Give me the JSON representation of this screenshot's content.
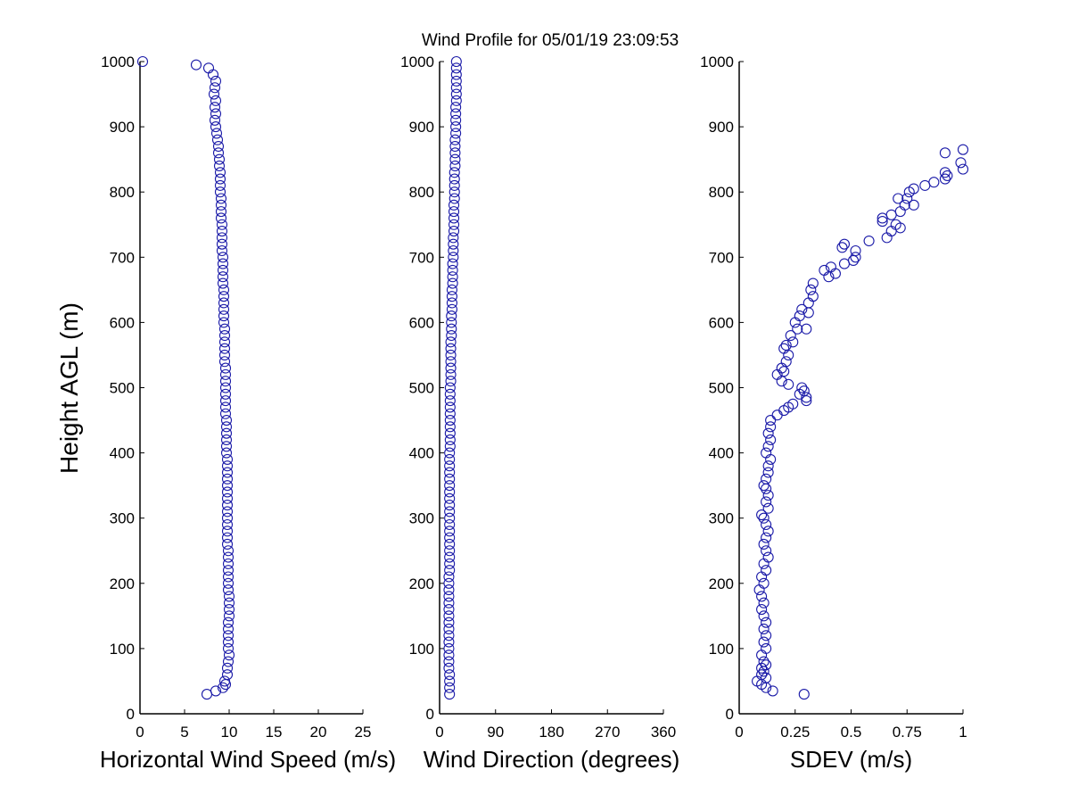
{
  "title": "Wind Profile for  05/01/19 23:09:53",
  "chart_data": [
    {
      "type": "scatter",
      "xlabel": "Horizontal Wind Speed (m/s)",
      "ylabel": "Height AGL (m)",
      "xlim": [
        0,
        25
      ],
      "ylim": [
        0,
        1000
      ],
      "xticks": [
        "0",
        "5",
        "10",
        "15",
        "20",
        "25"
      ],
      "yticks": [
        "0",
        "100",
        "200",
        "300",
        "400",
        "500",
        "600",
        "700",
        "800",
        "900",
        "1000"
      ],
      "color": "#1a1aa8",
      "points": [
        [
          7.5,
          30
        ],
        [
          8.5,
          35
        ],
        [
          9.3,
          40
        ],
        [
          9.6,
          45
        ],
        [
          9.5,
          50
        ],
        [
          9.8,
          60
        ],
        [
          9.8,
          70
        ],
        [
          9.9,
          80
        ],
        [
          10.0,
          90
        ],
        [
          9.9,
          100
        ],
        [
          9.9,
          110
        ],
        [
          9.9,
          120
        ],
        [
          9.9,
          130
        ],
        [
          9.9,
          140
        ],
        [
          10.0,
          150
        ],
        [
          10.0,
          160
        ],
        [
          10.0,
          170
        ],
        [
          10.0,
          180
        ],
        [
          9.9,
          190
        ],
        [
          9.9,
          200
        ],
        [
          9.9,
          210
        ],
        [
          9.9,
          220
        ],
        [
          9.9,
          230
        ],
        [
          9.9,
          240
        ],
        [
          9.9,
          250
        ],
        [
          9.8,
          260
        ],
        [
          9.8,
          270
        ],
        [
          9.8,
          280
        ],
        [
          9.8,
          290
        ],
        [
          9.8,
          300
        ],
        [
          9.8,
          310
        ],
        [
          9.8,
          320
        ],
        [
          9.8,
          330
        ],
        [
          9.8,
          340
        ],
        [
          9.8,
          350
        ],
        [
          9.8,
          360
        ],
        [
          9.8,
          370
        ],
        [
          9.8,
          380
        ],
        [
          9.8,
          390
        ],
        [
          9.7,
          400
        ],
        [
          9.7,
          410
        ],
        [
          9.7,
          420
        ],
        [
          9.7,
          430
        ],
        [
          9.7,
          440
        ],
        [
          9.7,
          450
        ],
        [
          9.6,
          460
        ],
        [
          9.6,
          470
        ],
        [
          9.6,
          480
        ],
        [
          9.6,
          490
        ],
        [
          9.6,
          500
        ],
        [
          9.6,
          510
        ],
        [
          9.6,
          520
        ],
        [
          9.6,
          530
        ],
        [
          9.5,
          540
        ],
        [
          9.5,
          550
        ],
        [
          9.5,
          560
        ],
        [
          9.5,
          570
        ],
        [
          9.5,
          580
        ],
        [
          9.5,
          590
        ],
        [
          9.4,
          600
        ],
        [
          9.4,
          610
        ],
        [
          9.4,
          620
        ],
        [
          9.4,
          630
        ],
        [
          9.4,
          640
        ],
        [
          9.4,
          650
        ],
        [
          9.3,
          660
        ],
        [
          9.3,
          670
        ],
        [
          9.3,
          680
        ],
        [
          9.3,
          690
        ],
        [
          9.3,
          700
        ],
        [
          9.2,
          710
        ],
        [
          9.2,
          720
        ],
        [
          9.2,
          730
        ],
        [
          9.2,
          740
        ],
        [
          9.2,
          750
        ],
        [
          9.1,
          760
        ],
        [
          9.1,
          770
        ],
        [
          9.1,
          780
        ],
        [
          9.1,
          790
        ],
        [
          9.0,
          800
        ],
        [
          9.0,
          810
        ],
        [
          9.0,
          820
        ],
        [
          9.0,
          830
        ],
        [
          8.9,
          840
        ],
        [
          8.9,
          850
        ],
        [
          8.8,
          860
        ],
        [
          8.8,
          870
        ],
        [
          8.7,
          880
        ],
        [
          8.6,
          890
        ],
        [
          8.5,
          900
        ],
        [
          8.4,
          910
        ],
        [
          8.5,
          920
        ],
        [
          8.4,
          930
        ],
        [
          8.5,
          940
        ],
        [
          8.3,
          950
        ],
        [
          8.4,
          960
        ],
        [
          8.5,
          970
        ],
        [
          8.2,
          980
        ],
        [
          7.7,
          990
        ],
        [
          6.3,
          995
        ],
        [
          0.3,
          1000
        ]
      ]
    },
    {
      "type": "scatter",
      "xlabel": "Wind Direction (degrees)",
      "ylabel": "",
      "xlim": [
        0,
        360
      ],
      "ylim": [
        0,
        1000
      ],
      "xticks": [
        "0",
        "90",
        "180",
        "270",
        "360"
      ],
      "yticks": [
        "0",
        "100",
        "200",
        "300",
        "400",
        "500",
        "600",
        "700",
        "800",
        "900",
        "1000"
      ],
      "color": "#1a1aa8",
      "points": [
        [
          16,
          30
        ],
        [
          16,
          40
        ],
        [
          16,
          50
        ],
        [
          16,
          60
        ],
        [
          15,
          70
        ],
        [
          15,
          80
        ],
        [
          15,
          90
        ],
        [
          15,
          100
        ],
        [
          15,
          110
        ],
        [
          15,
          120
        ],
        [
          15,
          130
        ],
        [
          15,
          140
        ],
        [
          15,
          150
        ],
        [
          15,
          160
        ],
        [
          15,
          170
        ],
        [
          15,
          180
        ],
        [
          15,
          190
        ],
        [
          15,
          200
        ],
        [
          15,
          210
        ],
        [
          16,
          220
        ],
        [
          16,
          230
        ],
        [
          16,
          240
        ],
        [
          16,
          250
        ],
        [
          16,
          260
        ],
        [
          16,
          270
        ],
        [
          16,
          280
        ],
        [
          16,
          290
        ],
        [
          16,
          300
        ],
        [
          16,
          310
        ],
        [
          16,
          320
        ],
        [
          16,
          330
        ],
        [
          16,
          340
        ],
        [
          16,
          350
        ],
        [
          16,
          360
        ],
        [
          16,
          370
        ],
        [
          16,
          380
        ],
        [
          16,
          390
        ],
        [
          16,
          400
        ],
        [
          17,
          410
        ],
        [
          17,
          420
        ],
        [
          17,
          430
        ],
        [
          17,
          440
        ],
        [
          17,
          450
        ],
        [
          17,
          460
        ],
        [
          17,
          470
        ],
        [
          17,
          480
        ],
        [
          17,
          490
        ],
        [
          17,
          500
        ],
        [
          18,
          510
        ],
        [
          18,
          520
        ],
        [
          18,
          530
        ],
        [
          18,
          540
        ],
        [
          18,
          550
        ],
        [
          18,
          560
        ],
        [
          18,
          570
        ],
        [
          19,
          580
        ],
        [
          19,
          590
        ],
        [
          19,
          600
        ],
        [
          19,
          610
        ],
        [
          20,
          620
        ],
        [
          20,
          630
        ],
        [
          20,
          640
        ],
        [
          20,
          650
        ],
        [
          21,
          660
        ],
        [
          21,
          670
        ],
        [
          21,
          680
        ],
        [
          21,
          690
        ],
        [
          22,
          700
        ],
        [
          22,
          710
        ],
        [
          22,
          720
        ],
        [
          22,
          730
        ],
        [
          23,
          740
        ],
        [
          23,
          750
        ],
        [
          23,
          760
        ],
        [
          23,
          770
        ],
        [
          23,
          780
        ],
        [
          24,
          790
        ],
        [
          24,
          800
        ],
        [
          24,
          810
        ],
        [
          24,
          820
        ],
        [
          24,
          830
        ],
        [
          25,
          840
        ],
        [
          25,
          850
        ],
        [
          25,
          860
        ],
        [
          25,
          870
        ],
        [
          25,
          880
        ],
        [
          26,
          890
        ],
        [
          26,
          900
        ],
        [
          26,
          910
        ],
        [
          26,
          920
        ],
        [
          26,
          930
        ],
        [
          27,
          940
        ],
        [
          27,
          950
        ],
        [
          27,
          960
        ],
        [
          27,
          970
        ],
        [
          27,
          980
        ],
        [
          27,
          990
        ],
        [
          27,
          1000
        ]
      ]
    },
    {
      "type": "scatter",
      "xlabel": "SDEV  (m/s)",
      "ylabel": "",
      "xlim": [
        0,
        1
      ],
      "ylim": [
        0,
        1000
      ],
      "xticks": [
        "0",
        "0.25",
        "0.5",
        "0.75",
        "1"
      ],
      "yticks": [
        "0",
        "100",
        "200",
        "300",
        "400",
        "500",
        "600",
        "700",
        "800",
        "900",
        "1000"
      ],
      "color": "#1a1aa8",
      "points": [
        [
          0.29,
          30
        ],
        [
          0.15,
          35
        ],
        [
          0.12,
          40
        ],
        [
          0.1,
          45
        ],
        [
          0.08,
          50
        ],
        [
          0.12,
          55
        ],
        [
          0.1,
          60
        ],
        [
          0.11,
          65
        ],
        [
          0.1,
          70
        ],
        [
          0.12,
          75
        ],
        [
          0.11,
          80
        ],
        [
          0.1,
          90
        ],
        [
          0.12,
          100
        ],
        [
          0.11,
          110
        ],
        [
          0.12,
          120
        ],
        [
          0.11,
          130
        ],
        [
          0.12,
          140
        ],
        [
          0.11,
          150
        ],
        [
          0.1,
          160
        ],
        [
          0.11,
          170
        ],
        [
          0.1,
          180
        ],
        [
          0.09,
          190
        ],
        [
          0.11,
          200
        ],
        [
          0.1,
          210
        ],
        [
          0.12,
          220
        ],
        [
          0.11,
          230
        ],
        [
          0.13,
          240
        ],
        [
          0.12,
          250
        ],
        [
          0.11,
          260
        ],
        [
          0.12,
          270
        ],
        [
          0.13,
          280
        ],
        [
          0.12,
          290
        ],
        [
          0.11,
          300
        ],
        [
          0.1,
          305
        ],
        [
          0.13,
          315
        ],
        [
          0.12,
          325
        ],
        [
          0.13,
          335
        ],
        [
          0.12,
          345
        ],
        [
          0.11,
          350
        ],
        [
          0.12,
          360
        ],
        [
          0.13,
          370
        ],
        [
          0.13,
          380
        ],
        [
          0.14,
          390
        ],
        [
          0.12,
          400
        ],
        [
          0.13,
          410
        ],
        [
          0.14,
          420
        ],
        [
          0.13,
          430
        ],
        [
          0.14,
          440
        ],
        [
          0.14,
          450
        ],
        [
          0.17,
          458
        ],
        [
          0.2,
          465
        ],
        [
          0.22,
          470
        ],
        [
          0.24,
          475
        ],
        [
          0.3,
          480
        ],
        [
          0.3,
          485
        ],
        [
          0.27,
          490
        ],
        [
          0.29,
          495
        ],
        [
          0.28,
          500
        ],
        [
          0.22,
          505
        ],
        [
          0.19,
          510
        ],
        [
          0.17,
          520
        ],
        [
          0.2,
          525
        ],
        [
          0.19,
          530
        ],
        [
          0.21,
          540
        ],
        [
          0.22,
          550
        ],
        [
          0.2,
          560
        ],
        [
          0.21,
          565
        ],
        [
          0.24,
          570
        ],
        [
          0.23,
          580
        ],
        [
          0.26,
          590
        ],
        [
          0.3,
          590
        ],
        [
          0.25,
          600
        ],
        [
          0.27,
          610
        ],
        [
          0.31,
          615
        ],
        [
          0.28,
          620
        ],
        [
          0.31,
          630
        ],
        [
          0.33,
          640
        ],
        [
          0.32,
          650
        ],
        [
          0.33,
          660
        ],
        [
          0.4,
          670
        ],
        [
          0.43,
          675
        ],
        [
          0.38,
          680
        ],
        [
          0.41,
          685
        ],
        [
          0.47,
          690
        ],
        [
          0.51,
          695
        ],
        [
          0.52,
          700
        ],
        [
          0.52,
          710
        ],
        [
          0.46,
          715
        ],
        [
          0.47,
          720
        ],
        [
          0.58,
          725
        ],
        [
          0.66,
          730
        ],
        [
          0.68,
          740
        ],
        [
          0.72,
          745
        ],
        [
          0.7,
          750
        ],
        [
          0.64,
          755
        ],
        [
          0.64,
          760
        ],
        [
          0.68,
          765
        ],
        [
          0.72,
          770
        ],
        [
          0.74,
          780
        ],
        [
          0.78,
          780
        ],
        [
          0.75,
          790
        ],
        [
          0.71,
          790
        ],
        [
          0.76,
          800
        ],
        [
          0.78,
          805
        ],
        [
          0.83,
          810
        ],
        [
          0.87,
          815
        ],
        [
          0.92,
          820
        ],
        [
          0.93,
          825
        ],
        [
          0.92,
          830
        ],
        [
          1.0,
          835
        ],
        [
          0.99,
          845
        ],
        [
          0.92,
          860
        ],
        [
          1.0,
          865
        ]
      ]
    }
  ]
}
